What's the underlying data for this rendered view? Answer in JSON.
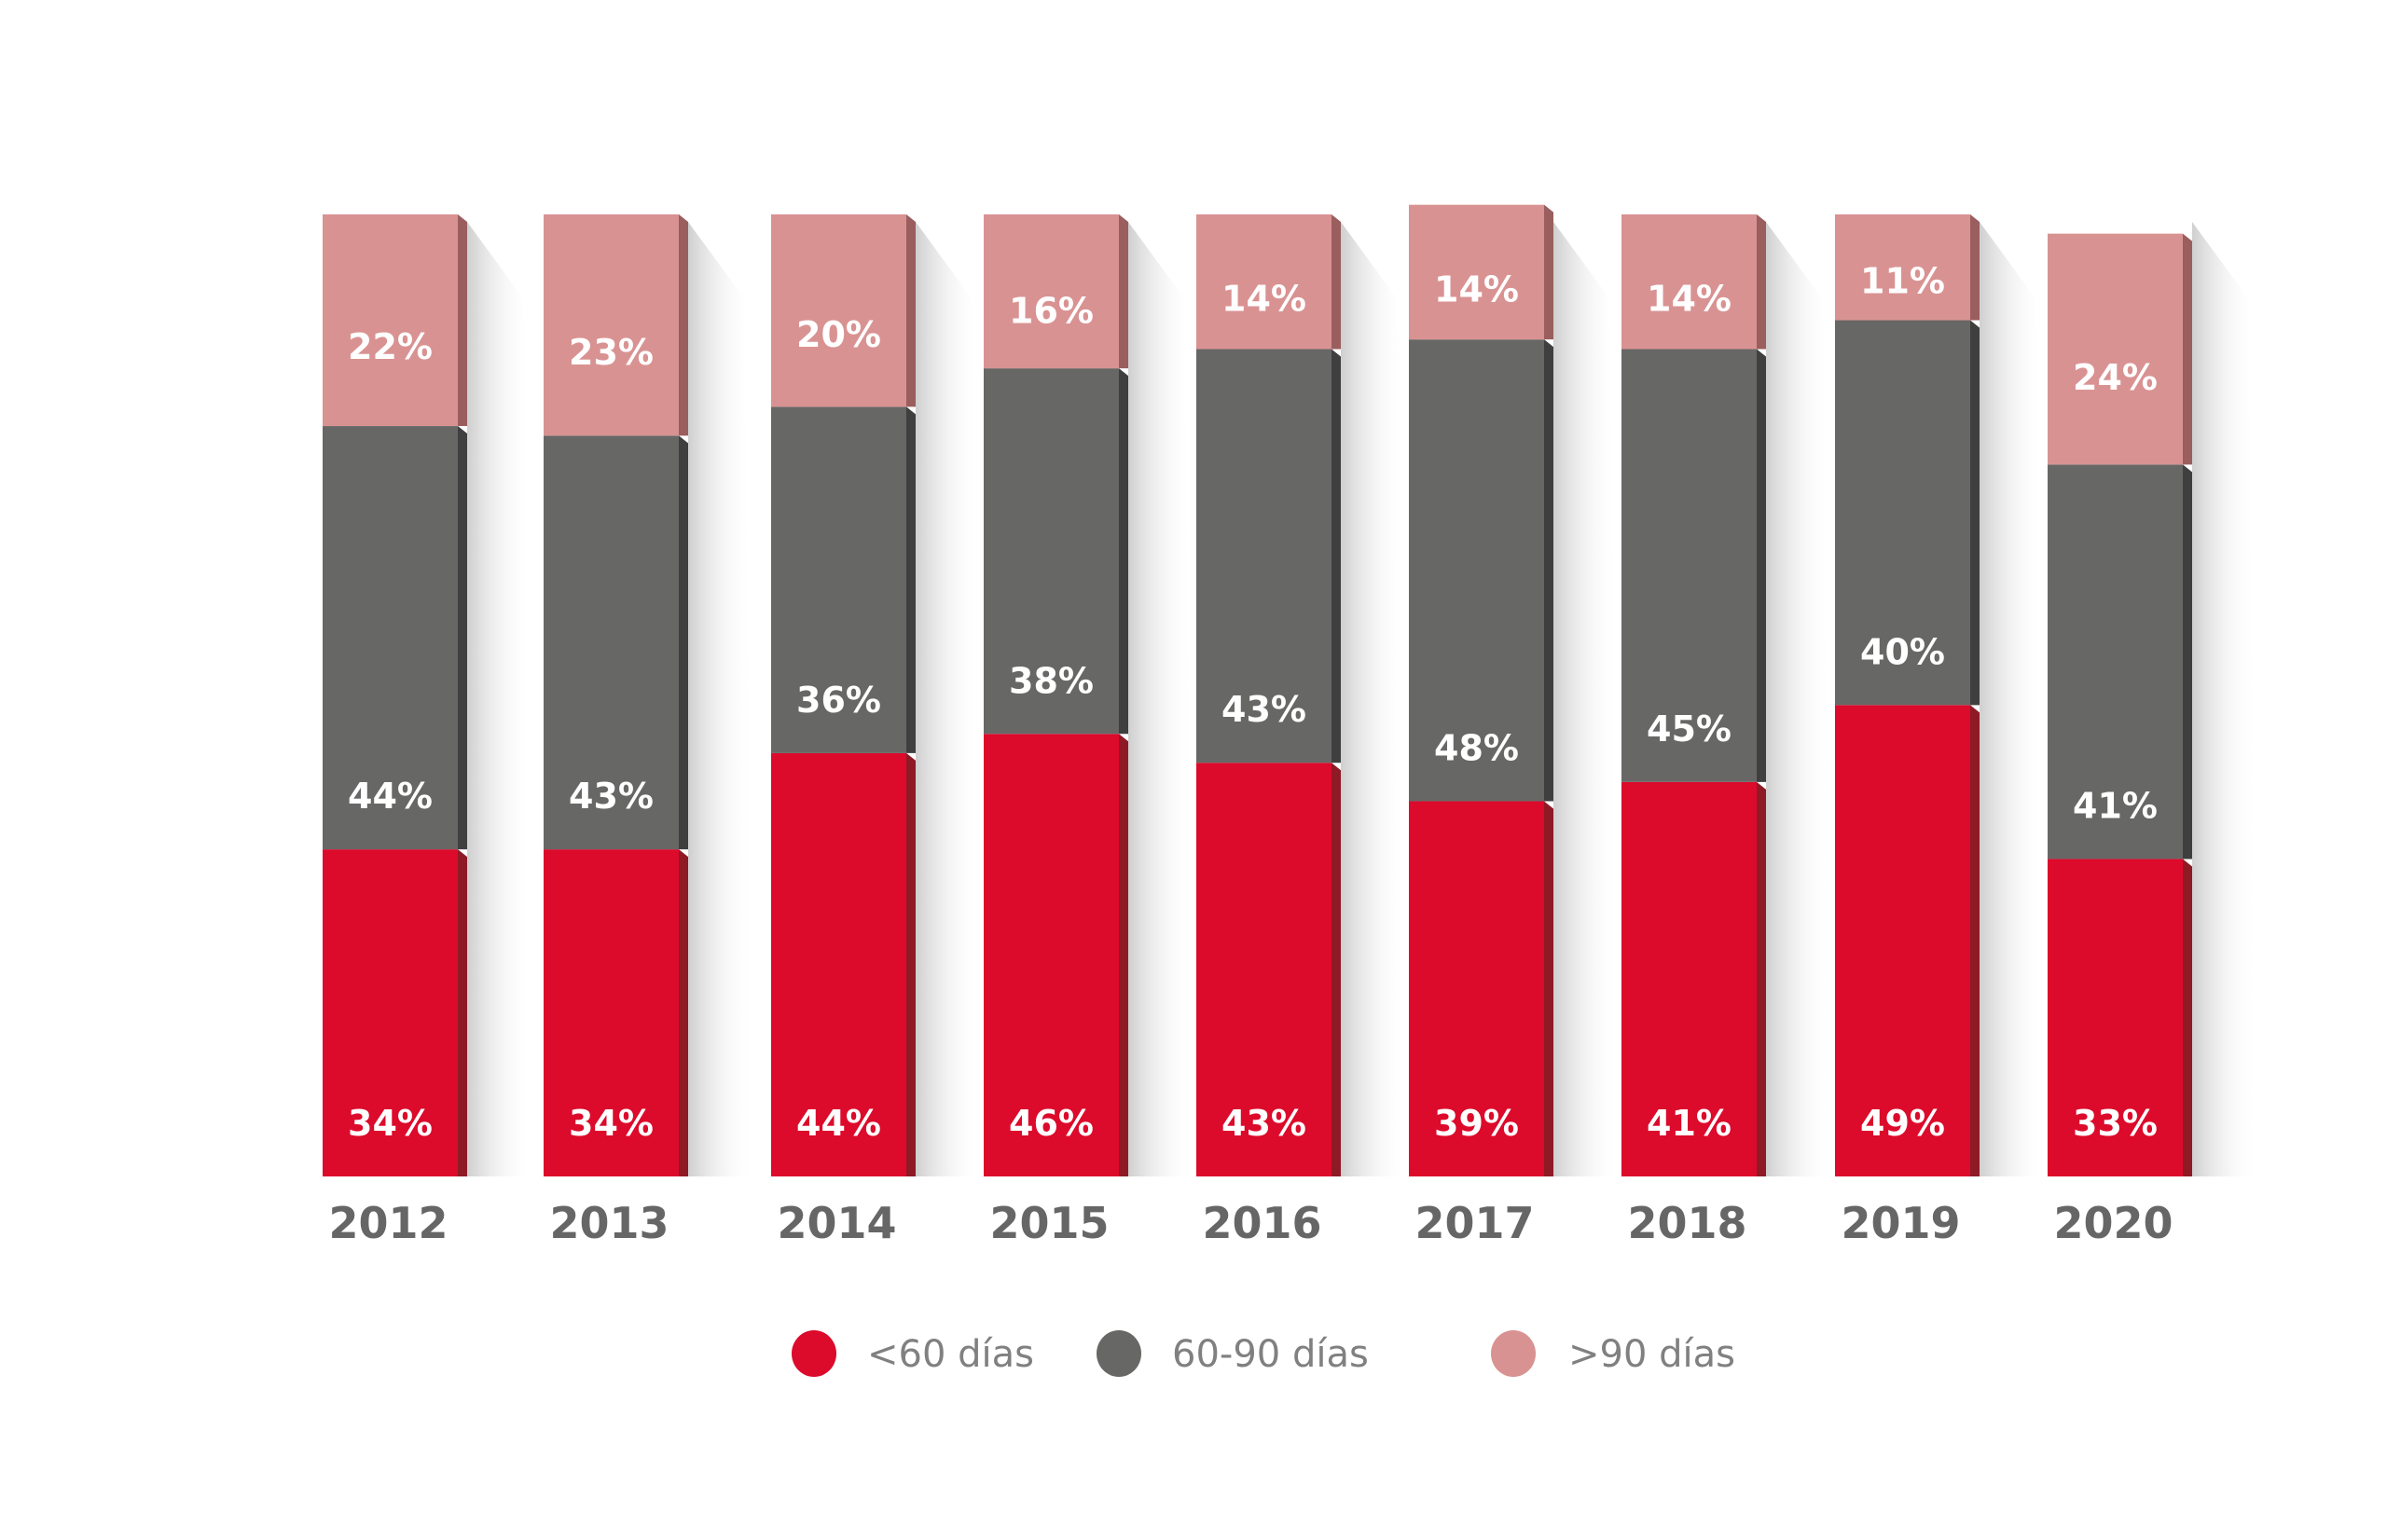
{
  "chart_data": {
    "type": "bar",
    "stacked": true,
    "title": "",
    "xlabel": "",
    "ylabel": "",
    "ylim": [
      0,
      100
    ],
    "grid": false,
    "legend_position": "bottom",
    "categories": [
      "2012",
      "2013",
      "2014",
      "2015",
      "2016",
      "2017",
      "2018",
      "2019",
      "2020"
    ],
    "series": [
      {
        "name": "<60 días",
        "color": "#DC0A2B",
        "side_color": "#8E1A26",
        "values": [
          34,
          34,
          44,
          46,
          43,
          39,
          41,
          49,
          33
        ]
      },
      {
        "name": "60-90 días",
        "color": "#676766",
        "side_color": "#3F3F3F",
        "values": [
          44,
          43,
          36,
          38,
          43,
          48,
          45,
          40,
          41
        ]
      },
      {
        "name": ">90 días",
        "color": "#D99292",
        "side_color": "#9A5E5E",
        "values": [
          22,
          23,
          20,
          16,
          14,
          14,
          14,
          11,
          24
        ]
      }
    ],
    "value_suffix": "%"
  }
}
